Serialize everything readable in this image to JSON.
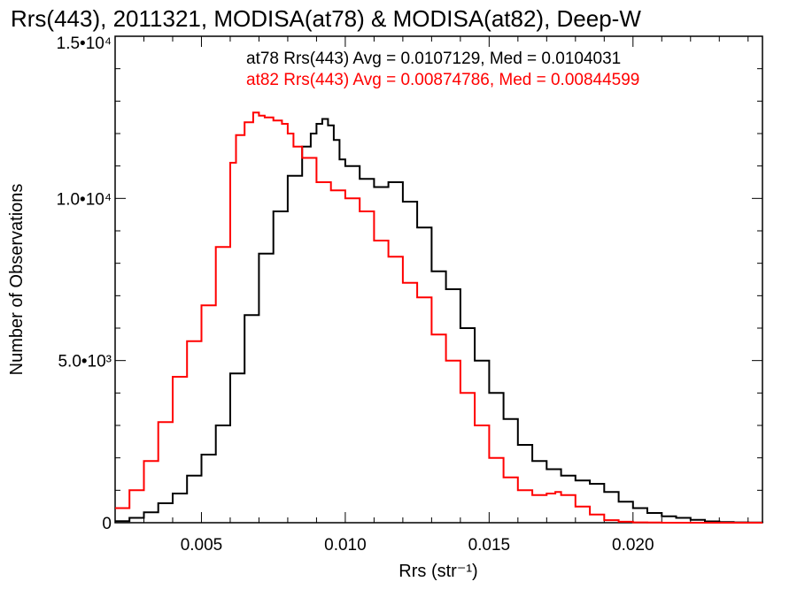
{
  "chart_data": {
    "type": "line",
    "title": "Rrs(443), 2011321, MODISA(at78) & MODISA(at82), Deep-W",
    "xlabel": "Rrs (str⁻¹)",
    "ylabel": "Number of Observations",
    "xlim": [
      0.002,
      0.0245
    ],
    "ylim": [
      0,
      15000
    ],
    "x_ticks": [
      {
        "value": 0.005,
        "label": "0.005"
      },
      {
        "value": 0.01,
        "label": "0.010"
      },
      {
        "value": 0.015,
        "label": "0.015"
      },
      {
        "value": 0.02,
        "label": "0.020"
      }
    ],
    "y_ticks": [
      {
        "value": 0,
        "label": "0"
      },
      {
        "value": 5000,
        "label": "5.0•10³"
      },
      {
        "value": 10000,
        "label": "1.0•10⁴"
      },
      {
        "value": 15000,
        "label": "1.5•10⁴"
      }
    ],
    "legend_position": "top-right",
    "series": [
      {
        "name": "at78 Rrs(443) Avg = 0.0107129, Med = 0.0104031",
        "color": "#000000",
        "x": [
          0.002,
          0.0025,
          0.003,
          0.0035,
          0.004,
          0.0045,
          0.005,
          0.0055,
          0.006,
          0.0065,
          0.007,
          0.0075,
          0.008,
          0.0085,
          0.0088,
          0.009,
          0.0092,
          0.0094,
          0.0096,
          0.0098,
          0.01,
          0.0105,
          0.011,
          0.0115,
          0.012,
          0.0125,
          0.013,
          0.0135,
          0.014,
          0.0145,
          0.015,
          0.0155,
          0.016,
          0.0165,
          0.017,
          0.0175,
          0.018,
          0.0185,
          0.019,
          0.0195,
          0.02,
          0.0205,
          0.021,
          0.0215,
          0.022,
          0.0225,
          0.023,
          0.0235,
          0.024,
          0.0245
        ],
        "y": [
          50,
          150,
          320,
          600,
          900,
          1450,
          2100,
          3000,
          4600,
          6400,
          8300,
          9600,
          10700,
          11600,
          12000,
          12300,
          12450,
          12250,
          11800,
          11200,
          11000,
          10600,
          10350,
          10500,
          9900,
          9100,
          7750,
          7200,
          6000,
          5000,
          4000,
          3200,
          2400,
          1900,
          1650,
          1450,
          1300,
          1200,
          950,
          650,
          450,
          300,
          200,
          150,
          90,
          40,
          20,
          10,
          5,
          0
        ]
      },
      {
        "name": "at82 Rrs(443) Avg = 0.00874786, Med = 0.00844599",
        "color": "#ff0000",
        "x": [
          0.002,
          0.0025,
          0.003,
          0.0035,
          0.004,
          0.0045,
          0.005,
          0.0055,
          0.006,
          0.0062,
          0.0065,
          0.0068,
          0.007,
          0.0072,
          0.0075,
          0.0078,
          0.008,
          0.0082,
          0.0085,
          0.009,
          0.0095,
          0.01,
          0.0105,
          0.011,
          0.0115,
          0.012,
          0.0125,
          0.013,
          0.0135,
          0.014,
          0.0145,
          0.015,
          0.0155,
          0.016,
          0.0165,
          0.017,
          0.0173,
          0.0175,
          0.018,
          0.0185,
          0.019,
          0.0195,
          0.02,
          0.0205,
          0.021,
          0.0215,
          0.022,
          0.0225,
          0.023,
          0.0235,
          0.024,
          0.0245
        ],
        "y": [
          450,
          1000,
          1900,
          3100,
          4500,
          5600,
          6700,
          8500,
          11100,
          11950,
          12350,
          12650,
          12550,
          12500,
          12400,
          12300,
          12000,
          11600,
          11250,
          10500,
          10250,
          10000,
          9600,
          8700,
          8200,
          7400,
          6950,
          5800,
          5000,
          4000,
          3000,
          2000,
          1400,
          1000,
          850,
          900,
          950,
          850,
          500,
          250,
          80,
          30,
          10,
          5,
          0,
          0,
          0,
          0,
          0,
          0,
          0,
          0
        ]
      }
    ]
  }
}
